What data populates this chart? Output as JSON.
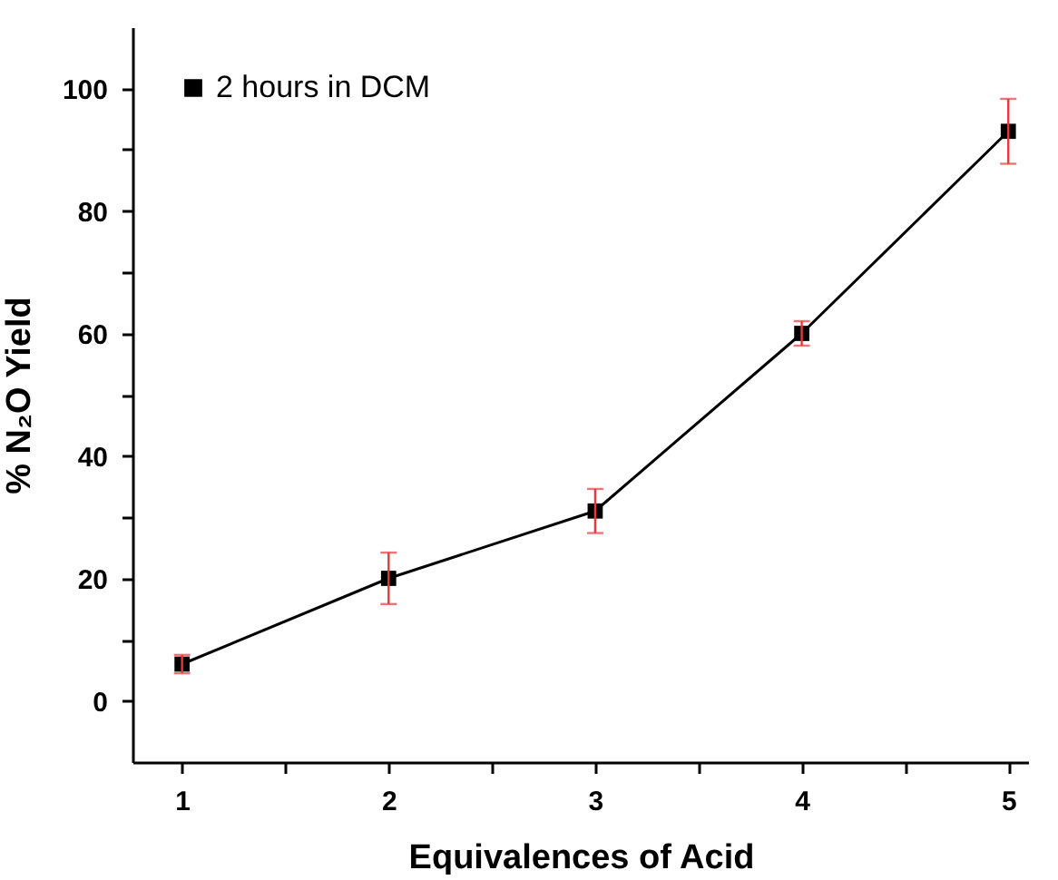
{
  "chart_data": {
    "type": "line",
    "xlabel": "Equivalences of Acid",
    "ylabel": "% N₂O Yield",
    "x": [
      1,
      2,
      3,
      4,
      5
    ],
    "series": [
      {
        "name": "2 hours in DCM",
        "color": "#000000",
        "values": [
          6,
          20,
          31,
          60,
          93
        ],
        "errors": [
          1.5,
          4.2,
          3.6,
          2,
          5.3
        ]
      }
    ],
    "xlim": [
      0.76,
      5.1
    ],
    "xticks": [
      1,
      {
        "value": 1.5,
        "label": null
      },
      2,
      {
        "value": 2.5,
        "label": null
      },
      3,
      {
        "value": 3.5,
        "label": null
      },
      4,
      {
        "value": 4.5,
        "label": null
      },
      5
    ],
    "ylim": [
      -10,
      110
    ],
    "yticks": [
      0,
      {
        "value": 10,
        "label": null
      },
      20,
      {
        "value": 30,
        "label": null
      },
      40,
      {
        "value": 50,
        "label": null
      },
      60,
      {
        "value": 70,
        "label": null
      },
      80,
      {
        "value": 90,
        "label": null
      },
      100
    ],
    "marker": "square",
    "line_style": "solid",
    "grid": false,
    "legend": "top left"
  }
}
